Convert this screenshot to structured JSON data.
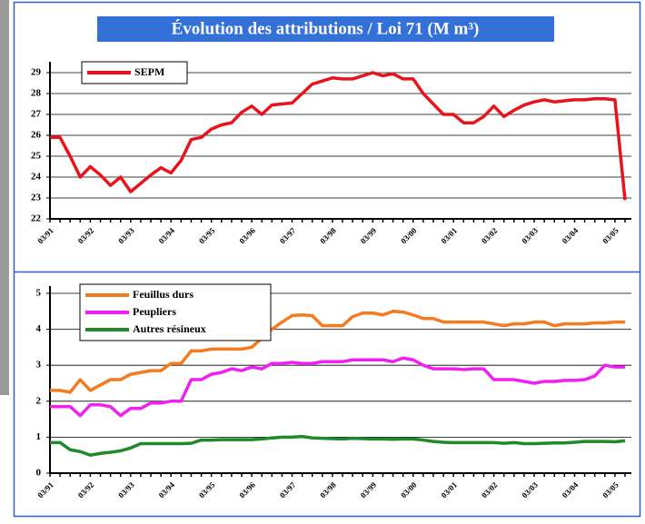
{
  "title": "Évolution des attributions / Loi 71 (M m³)",
  "chart_data": [
    {
      "type": "line",
      "categories": [
        "03/91",
        null,
        null,
        null,
        "03/92",
        null,
        null,
        null,
        "03/93",
        null,
        null,
        null,
        "03/94",
        null,
        null,
        null,
        "03/95",
        null,
        null,
        null,
        "03/96",
        null,
        null,
        null,
        "03/97",
        null,
        null,
        null,
        "03/98",
        null,
        null,
        null,
        "03/99",
        null,
        null,
        null,
        "03/00",
        null,
        null,
        null,
        "03/01",
        null,
        null,
        null,
        "03/02",
        null,
        null,
        null,
        "03/03",
        null,
        null,
        null,
        "03/04",
        null,
        null,
        null,
        "03/05",
        null
      ],
      "ylim": [
        22,
        29
      ],
      "yticks": [
        22,
        23,
        24,
        25,
        26,
        27,
        28,
        29
      ],
      "grid": true,
      "legend": "top-left",
      "series": [
        {
          "name": "SEPM",
          "color": "#e8141c",
          "values": [
            25.9,
            25.9,
            25.0,
            24.0,
            24.5,
            24.1,
            23.6,
            24.0,
            23.3,
            23.7,
            24.1,
            24.45,
            24.2,
            24.8,
            25.8,
            25.9,
            26.3,
            26.5,
            26.6,
            27.1,
            27.4,
            27.0,
            27.45,
            27.5,
            27.55,
            28.0,
            28.45,
            28.6,
            28.75,
            28.7,
            28.7,
            28.85,
            29.0,
            28.85,
            28.95,
            28.7,
            28.7,
            28.0,
            27.5,
            27.0,
            27.0,
            26.6,
            26.6,
            26.9,
            27.4,
            26.9,
            27.2,
            27.45,
            27.6,
            27.7,
            27.6,
            27.65,
            27.7,
            27.7,
            27.75,
            27.75,
            27.7,
            22.9
          ]
        }
      ]
    },
    {
      "type": "line",
      "categories": [
        "03/91",
        null,
        null,
        null,
        "03/92",
        null,
        null,
        null,
        "03/93",
        null,
        null,
        null,
        "03/94",
        null,
        null,
        null,
        "03/95",
        null,
        null,
        null,
        "03/96",
        null,
        null,
        null,
        "03/97",
        null,
        null,
        null,
        "03/98",
        null,
        null,
        null,
        "03/99",
        null,
        null,
        null,
        "03/00",
        null,
        null,
        null,
        "03/01",
        null,
        null,
        null,
        "03/02",
        null,
        null,
        null,
        "03/03",
        null,
        null,
        null,
        "03/04",
        null,
        null,
        null,
        "03/05",
        null
      ],
      "ylim": [
        0,
        5
      ],
      "yticks": [
        0,
        1,
        2,
        3,
        4,
        5
      ],
      "grid": true,
      "legend": "top-left",
      "series": [
        {
          "name": "Feuillus durs",
          "color": "#f47b20",
          "values": [
            2.3,
            2.3,
            2.25,
            2.6,
            2.3,
            2.45,
            2.6,
            2.6,
            2.75,
            2.8,
            2.85,
            2.85,
            3.05,
            3.05,
            3.4,
            3.4,
            3.45,
            3.45,
            3.45,
            3.45,
            3.5,
            3.75,
            4.0,
            4.2,
            4.38,
            4.4,
            4.38,
            4.1,
            4.1,
            4.1,
            4.35,
            4.45,
            4.45,
            4.4,
            4.5,
            4.48,
            4.4,
            4.3,
            4.3,
            4.2,
            4.2,
            4.2,
            4.2,
            4.2,
            4.15,
            4.1,
            4.15,
            4.15,
            4.2,
            4.2,
            4.1,
            4.15,
            4.15,
            4.15,
            4.18,
            4.18,
            4.2,
            4.2
          ]
        },
        {
          "name": "Peupliers",
          "color": "#f020f0",
          "values": [
            1.85,
            1.85,
            1.85,
            1.6,
            1.9,
            1.9,
            1.85,
            1.6,
            1.8,
            1.8,
            1.95,
            1.95,
            2.0,
            2.0,
            2.6,
            2.6,
            2.75,
            2.8,
            2.9,
            2.85,
            2.95,
            2.9,
            3.05,
            3.05,
            3.08,
            3.05,
            3.05,
            3.1,
            3.1,
            3.1,
            3.15,
            3.15,
            3.15,
            3.15,
            3.1,
            3.2,
            3.15,
            3.0,
            2.9,
            2.9,
            2.9,
            2.88,
            2.9,
            2.9,
            2.6,
            2.6,
            2.6,
            2.55,
            2.5,
            2.55,
            2.55,
            2.58,
            2.58,
            2.6,
            2.7,
            3.0,
            2.95,
            2.95
          ]
        },
        {
          "name": "Autres résineux",
          "color": "#1e8a2a",
          "values": [
            0.85,
            0.85,
            0.65,
            0.6,
            0.5,
            0.55,
            0.58,
            0.62,
            0.7,
            0.82,
            0.82,
            0.82,
            0.82,
            0.82,
            0.83,
            0.92,
            0.92,
            0.93,
            0.93,
            0.93,
            0.93,
            0.95,
            0.98,
            1.0,
            1.0,
            1.02,
            0.98,
            0.97,
            0.96,
            0.95,
            0.97,
            0.96,
            0.95,
            0.95,
            0.94,
            0.95,
            0.95,
            0.92,
            0.88,
            0.86,
            0.85,
            0.85,
            0.85,
            0.85,
            0.85,
            0.83,
            0.85,
            0.82,
            0.82,
            0.83,
            0.84,
            0.84,
            0.86,
            0.88,
            0.88,
            0.88,
            0.87,
            0.9
          ]
        }
      ]
    }
  ]
}
